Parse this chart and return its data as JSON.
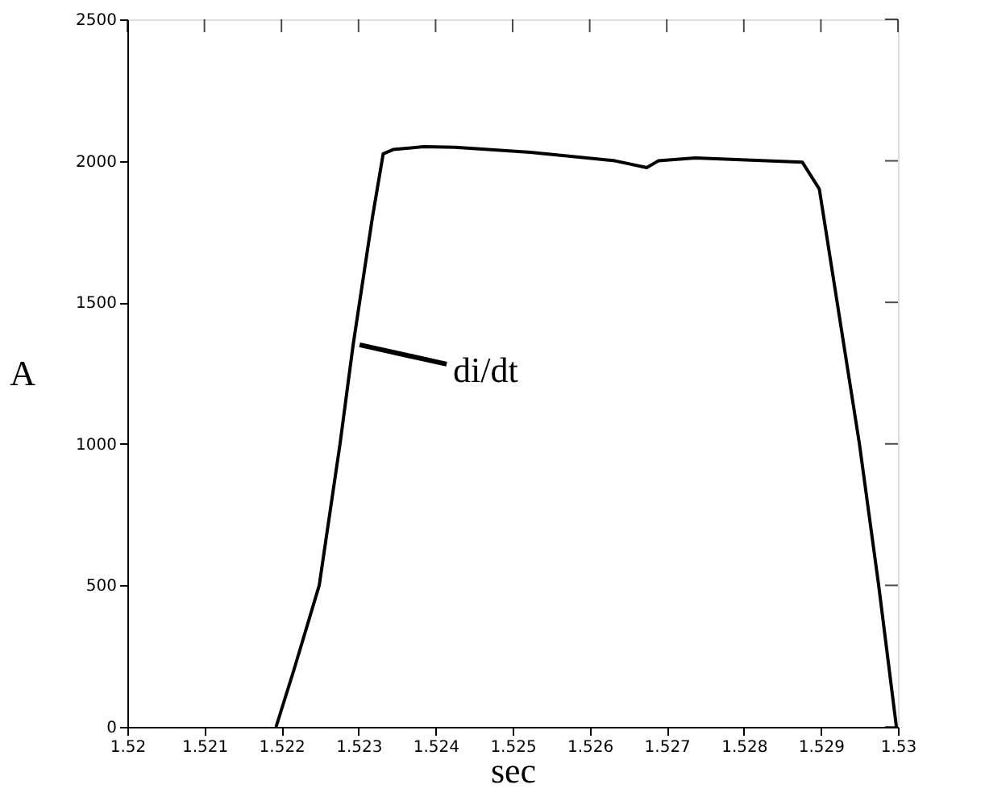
{
  "chart_data": {
    "type": "line",
    "xlabel": "sec",
    "ylabel": "A",
    "x": [
      1.52193,
      1.52216,
      1.52249,
      1.52276,
      1.52293,
      1.52318,
      1.52332,
      1.52345,
      1.52384,
      1.52425,
      1.52523,
      1.52633,
      1.52674,
      1.52689,
      1.52737,
      1.52876,
      1.52898,
      1.5295,
      1.52975,
      1.52998
    ],
    "series": [
      {
        "color": "#000000",
        "values": [
          0,
          200,
          500,
          1000,
          1350,
          1800,
          2025,
          2040,
          2050,
          2048,
          2030,
          2000,
          1976,
          2000,
          2010,
          1995,
          1900,
          1000,
          500,
          0
        ]
      }
    ],
    "xlim": [
      1.52,
      1.53
    ],
    "ylim": [
      0,
      2500
    ],
    "xticks": [
      1.52,
      1.521,
      1.522,
      1.523,
      1.524,
      1.525,
      1.526,
      1.527,
      1.528,
      1.529,
      1.53
    ],
    "yticks": [
      0,
      500,
      1000,
      1500,
      2000,
      2500
    ],
    "annotations": [
      {
        "text": "di/dt",
        "x": 1.52293,
        "y": 1350
      }
    ],
    "grid": false,
    "marker": "none",
    "line_style": "solid"
  }
}
